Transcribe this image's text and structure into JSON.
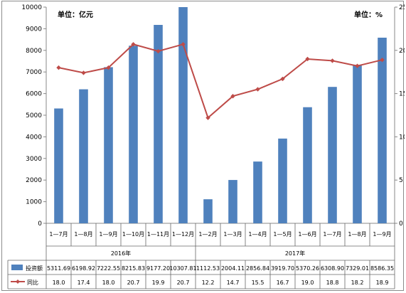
{
  "chart_data": {
    "type": "bar+line",
    "unit_left": "单位：亿元",
    "unit_right": "单位：%",
    "groups": [
      {
        "label": "2016年",
        "categories": [
          "1—7月",
          "1—8月",
          "1—9月",
          "1—10月",
          "1—11月",
          "1—12月"
        ]
      },
      {
        "label": "2017年",
        "categories": [
          "1—2月",
          "1—3月",
          "1—4月",
          "1—5月",
          "1—6月",
          "1—7月",
          "1—8月",
          "1—9月"
        ]
      }
    ],
    "categories": [
      "1—7月",
      "1—8月",
      "1—9月",
      "1—10月",
      "1—11月",
      "1—12月",
      "1—2月",
      "1—3月",
      "1—4月",
      "1—5月",
      "1—6月",
      "1—7月",
      "1—8月",
      "1—9月"
    ],
    "series": [
      {
        "name": "投资额",
        "kind": "bar",
        "axis": "left",
        "color": "#4f81bd",
        "values": [
          5311.69,
          6198.92,
          7222.55,
          8215.83,
          9177.2,
          10307.81,
          1112.53,
          2004.11,
          2856.84,
          3919.7,
          5370.26,
          6308.9,
          7329.01,
          8586.35
        ],
        "labels": [
          "5311.69",
          "6198.92",
          "7222.55",
          "8215.83",
          "9177.20",
          "10307.81",
          "1112.53",
          "2004.11",
          "2856.84",
          "3919.70",
          "5370.26",
          "6308.90",
          "7329.01",
          "8586.35"
        ]
      },
      {
        "name": "同比",
        "kind": "line",
        "axis": "right",
        "color": "#be4b48",
        "values": [
          18.0,
          17.4,
          18.0,
          20.7,
          19.9,
          20.7,
          12.2,
          14.7,
          15.5,
          16.7,
          19.0,
          18.8,
          18.2,
          18.9
        ],
        "labels": [
          "18.0",
          "17.4",
          "18.0",
          "20.7",
          "19.9",
          "20.7",
          "12.2",
          "14.7",
          "15.5",
          "16.7",
          "19.0",
          "18.8",
          "18.2",
          "18.9"
        ]
      }
    ],
    "y_left": {
      "min": 0,
      "max": 10000,
      "ticks": [
        "0",
        "1000",
        "2000",
        "3000",
        "4000",
        "5000",
        "6000",
        "7000",
        "8000",
        "9000",
        "10000"
      ]
    },
    "y_right": {
      "min": 0,
      "max": 25,
      "ticks": [
        "0",
        "5",
        "10",
        "15",
        "20",
        "25"
      ]
    },
    "grid": false,
    "legend": "data-table-left"
  }
}
